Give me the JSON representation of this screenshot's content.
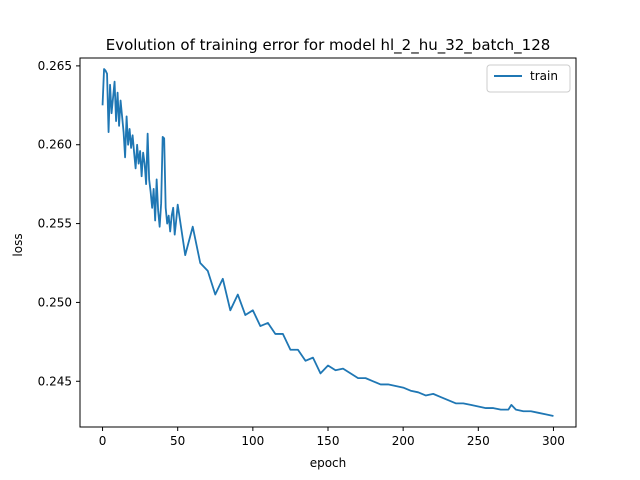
{
  "chart_data": {
    "type": "line",
    "title": "Evolution of training error for model hl_2_hu_32_batch_128",
    "xlabel": "epoch",
    "ylabel": "loss",
    "xlim": [
      -15,
      315
    ],
    "ylim": [
      0.2421,
      0.2655
    ],
    "xticks": [
      0,
      50,
      100,
      150,
      200,
      250,
      300
    ],
    "yticks": [
      0.245,
      0.25,
      0.255,
      0.26,
      0.265
    ],
    "ytick_labels": [
      "0.245",
      "0.250",
      "0.255",
      "0.260",
      "0.265"
    ],
    "grid": false,
    "legend_position": "upper right",
    "series": [
      {
        "name": "train",
        "color": "#1f77b4",
        "x": [
          0,
          1,
          2,
          3,
          4,
          5,
          6,
          7,
          8,
          9,
          10,
          11,
          12,
          13,
          14,
          15,
          16,
          17,
          18,
          19,
          20,
          21,
          22,
          23,
          24,
          25,
          26,
          27,
          28,
          29,
          30,
          31,
          32,
          33,
          34,
          35,
          36,
          37,
          38,
          39,
          40,
          41,
          42,
          43,
          44,
          45,
          46,
          47,
          48,
          49,
          50,
          55,
          60,
          65,
          70,
          75,
          80,
          85,
          90,
          95,
          100,
          105,
          110,
          115,
          120,
          125,
          130,
          135,
          140,
          145,
          150,
          155,
          160,
          165,
          170,
          175,
          180,
          185,
          190,
          195,
          200,
          205,
          210,
          215,
          220,
          225,
          230,
          235,
          240,
          245,
          250,
          255,
          260,
          265,
          270,
          272,
          275,
          280,
          285,
          290,
          295,
          300
        ],
        "values": [
          0.2625,
          0.2648,
          0.2647,
          0.2645,
          0.2608,
          0.2638,
          0.262,
          0.263,
          0.264,
          0.2615,
          0.2633,
          0.2612,
          0.2628,
          0.2618,
          0.2608,
          0.2592,
          0.2618,
          0.26,
          0.261,
          0.2598,
          0.2606,
          0.2595,
          0.2585,
          0.26,
          0.2588,
          0.2596,
          0.258,
          0.2595,
          0.2588,
          0.2575,
          0.2607,
          0.2578,
          0.257,
          0.256,
          0.2572,
          0.2552,
          0.2578,
          0.2558,
          0.2548,
          0.2563,
          0.2605,
          0.2604,
          0.256,
          0.255,
          0.2555,
          0.2545,
          0.2555,
          0.256,
          0.2543,
          0.2552,
          0.2562,
          0.253,
          0.2548,
          0.2525,
          0.252,
          0.2505,
          0.2515,
          0.2495,
          0.2505,
          0.2492,
          0.2495,
          0.2485,
          0.2487,
          0.248,
          0.248,
          0.247,
          0.247,
          0.2463,
          0.2465,
          0.2455,
          0.246,
          0.2457,
          0.2458,
          0.2455,
          0.2452,
          0.2452,
          0.245,
          0.2448,
          0.2448,
          0.2447,
          0.2446,
          0.2444,
          0.2443,
          0.2441,
          0.2442,
          0.244,
          0.2438,
          0.2436,
          0.2436,
          0.2435,
          0.2434,
          0.2433,
          0.2433,
          0.2432,
          0.2432,
          0.2435,
          0.2432,
          0.2431,
          0.2431,
          0.243,
          0.2429,
          0.2428
        ]
      }
    ]
  }
}
